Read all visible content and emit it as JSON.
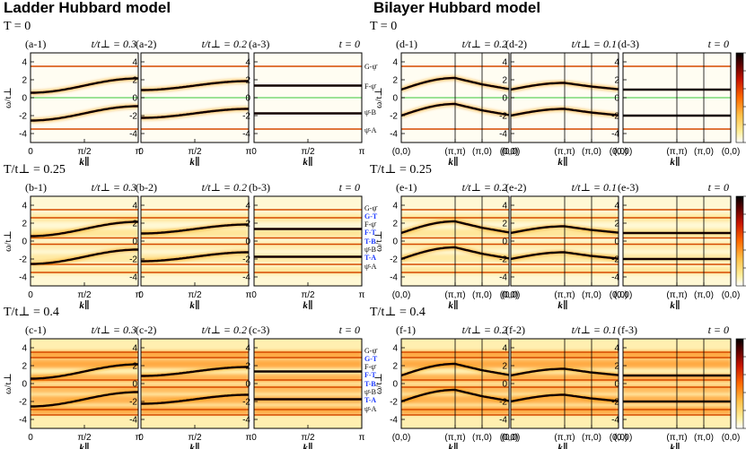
{
  "left_title": "Ladder Hubbard model",
  "right_title": "Bilayer Hubbard model",
  "ladder_row_labels": [
    "T = 0",
    "T/t⊥ = 0.25",
    "T/t⊥ = 0.4"
  ],
  "bilayer_row_labels": [
    "T = 0",
    "T/t⊥ = 0.25",
    "T/t⊥ = 0.4"
  ],
  "ladder_band_labels_row1": [
    "G-ψ̄",
    "F-ψ̄",
    "ψ̄-B",
    "ψ̄-A"
  ],
  "ladder_band_labels_hot": [
    {
      "text": "G-ψ̄",
      "blue": false
    },
    {
      "text": "G-T",
      "blue": true
    },
    {
      "text": "F-ψ̄",
      "blue": false
    },
    {
      "text": "F-T",
      "blue": true
    },
    {
      "text": "T-B",
      "blue": true
    },
    {
      "text": "ψ̄-B",
      "blue": false
    },
    {
      "text": "T-A",
      "blue": true
    },
    {
      "text": "ψ̄-A",
      "blue": false
    }
  ],
  "colorbar_ticks": [
    "1",
    "0.8",
    "0.6",
    "0.4",
    "0.2",
    "0"
  ],
  "chart_data": [
    {
      "panel": "(a-1)",
      "type": "heatmap",
      "model": "ladder",
      "param": "t/t⊥ = 0.3",
      "temperature": "T = 0",
      "x_ticks": [
        "0",
        "π/2",
        "π"
      ],
      "xlabel": "k∥",
      "ylabel": "ω/t⊥",
      "ylim": [
        -5,
        5
      ],
      "y_ticks": [
        4,
        2,
        0,
        -2,
        -4
      ]
    },
    {
      "panel": "(a-2)",
      "type": "heatmap",
      "model": "ladder",
      "param": "t/t⊥ = 0.2",
      "temperature": "T = 0",
      "x_ticks": [
        "0",
        "π/2",
        "π"
      ],
      "xlabel": "k∥",
      "ylim": [
        -5,
        5
      ],
      "y_ticks": [
        4,
        2,
        0,
        -2,
        -4
      ]
    },
    {
      "panel": "(a-3)",
      "type": "heatmap",
      "model": "ladder",
      "param": "t = 0",
      "temperature": "T = 0",
      "x_ticks": [
        "0",
        "π/2",
        "π"
      ],
      "xlabel": "k∥",
      "ylim": [
        -5,
        5
      ],
      "y_ticks": [
        4,
        2,
        0,
        -2,
        -4
      ]
    },
    {
      "panel": "(b-1)",
      "type": "heatmap",
      "model": "ladder",
      "param": "t/t⊥ = 0.3",
      "temperature": "T/t⊥ = 0.25",
      "x_ticks": [
        "0",
        "π/2",
        "π"
      ],
      "xlabel": "k∥",
      "ylabel": "ω/t⊥",
      "ylim": [
        -5,
        5
      ],
      "y_ticks": [
        4,
        2,
        0,
        -2,
        -4
      ]
    },
    {
      "panel": "(b-2)",
      "type": "heatmap",
      "model": "ladder",
      "param": "t/t⊥ = 0.2",
      "temperature": "T/t⊥ = 0.25",
      "x_ticks": [
        "0",
        "π/2",
        "π"
      ],
      "xlabel": "k∥",
      "ylim": [
        -5,
        5
      ],
      "y_ticks": [
        4,
        2,
        0,
        -2,
        -4
      ]
    },
    {
      "panel": "(b-3)",
      "type": "heatmap",
      "model": "ladder",
      "param": "t = 0",
      "temperature": "T/t⊥ = 0.25",
      "x_ticks": [
        "0",
        "π/2",
        "π"
      ],
      "xlabel": "k∥",
      "ylim": [
        -5,
        5
      ],
      "y_ticks": [
        4,
        2,
        0,
        -2,
        -4
      ]
    },
    {
      "panel": "(c-1)",
      "type": "heatmap",
      "model": "ladder",
      "param": "t/t⊥ = 0.3",
      "temperature": "T/t⊥ = 0.4",
      "x_ticks": [
        "0",
        "π/2",
        "π"
      ],
      "xlabel": "k∥",
      "ylabel": "ω/t⊥",
      "ylim": [
        -5,
        5
      ],
      "y_ticks": [
        4,
        2,
        0,
        -2,
        -4
      ]
    },
    {
      "panel": "(c-2)",
      "type": "heatmap",
      "model": "ladder",
      "param": "t/t⊥ = 0.2",
      "temperature": "T/t⊥ = 0.4",
      "x_ticks": [
        "0",
        "π/2",
        "π"
      ],
      "xlabel": "k∥",
      "ylim": [
        -5,
        5
      ],
      "y_ticks": [
        4,
        2,
        0,
        -2,
        -4
      ]
    },
    {
      "panel": "(c-3)",
      "type": "heatmap",
      "model": "ladder",
      "param": "t = 0",
      "temperature": "T/t⊥ = 0.4",
      "x_ticks": [
        "0",
        "π/2",
        "π"
      ],
      "xlabel": "k∥",
      "ylim": [
        -5,
        5
      ],
      "y_ticks": [
        4,
        2,
        0,
        -2,
        -4
      ]
    },
    {
      "panel": "(d-1)",
      "type": "heatmap",
      "model": "bilayer",
      "param": "t/t⊥ = 0.2",
      "temperature": "T = 0",
      "x_ticks": [
        "(0,0)",
        "(π,π)",
        "(π,0)",
        "(0,0)"
      ],
      "xlabel": "k∥",
      "ylabel": "ω/t⊥",
      "ylim": [
        -5,
        5
      ],
      "y_ticks": [
        4,
        2,
        0,
        -2,
        -4
      ]
    },
    {
      "panel": "(d-2)",
      "type": "heatmap",
      "model": "bilayer",
      "param": "t/t⊥ = 0.1",
      "temperature": "T = 0",
      "x_ticks": [
        "(0,0)",
        "(π,π)",
        "(π,0)",
        "(0,0)"
      ],
      "xlabel": "k∥",
      "ylim": [
        -5,
        5
      ],
      "y_ticks": [
        4,
        2,
        0,
        -2,
        -4
      ]
    },
    {
      "panel": "(d-3)",
      "type": "heatmap",
      "model": "bilayer",
      "param": "t = 0",
      "temperature": "T = 0",
      "x_ticks": [
        "(0,0)",
        "(π,π)",
        "(π,0)",
        "(0,0)"
      ],
      "xlabel": "k∥",
      "ylim": [
        -5,
        5
      ],
      "y_ticks": [
        4,
        2,
        0,
        -2,
        -4
      ],
      "colorbar": [
        0,
        1
      ]
    },
    {
      "panel": "(e-1)",
      "type": "heatmap",
      "model": "bilayer",
      "param": "t/t⊥ = 0.2",
      "temperature": "T/t⊥ = 0.25",
      "x_ticks": [
        "(0,0)",
        "(π,π)",
        "(π,0)",
        "(0,0)"
      ],
      "xlabel": "k∥",
      "ylabel": "ω/t⊥",
      "ylim": [
        -5,
        5
      ],
      "y_ticks": [
        4,
        2,
        0,
        -2,
        -4
      ]
    },
    {
      "panel": "(e-2)",
      "type": "heatmap",
      "model": "bilayer",
      "param": "t/t⊥ = 0.1",
      "temperature": "T/t⊥ = 0.25",
      "x_ticks": [
        "(0,0)",
        "(π,π)",
        "(π,0)",
        "(0,0)"
      ],
      "xlabel": "k∥",
      "ylim": [
        -5,
        5
      ],
      "y_ticks": [
        4,
        2,
        0,
        -2,
        -4
      ]
    },
    {
      "panel": "(e-3)",
      "type": "heatmap",
      "model": "bilayer",
      "param": "t = 0",
      "temperature": "T/t⊥ = 0.25",
      "x_ticks": [
        "(0,0)",
        "(π,π)",
        "(π,0)",
        "(0,0)"
      ],
      "xlabel": "k∥",
      "ylim": [
        -5,
        5
      ],
      "y_ticks": [
        4,
        2,
        0,
        -2,
        -4
      ],
      "colorbar": [
        0,
        1
      ]
    },
    {
      "panel": "(f-1)",
      "type": "heatmap",
      "model": "bilayer",
      "param": "t/t⊥ = 0.2",
      "temperature": "T/t⊥ = 0.4",
      "x_ticks": [
        "(0,0)",
        "(π,π)",
        "(π,0)",
        "(0,0)"
      ],
      "xlabel": "k∥",
      "ylabel": "ω/t⊥",
      "ylim": [
        -5,
        5
      ],
      "y_ticks": [
        4,
        2,
        0,
        -2,
        -4
      ]
    },
    {
      "panel": "(f-2)",
      "type": "heatmap",
      "model": "bilayer",
      "param": "t/t⊥ = 0.1",
      "temperature": "T/t⊥ = 0.4",
      "x_ticks": [
        "(0,0)",
        "(π,π)",
        "(π,0)",
        "(0,0)"
      ],
      "xlabel": "k∥",
      "ylim": [
        -5,
        5
      ],
      "y_ticks": [
        4,
        2,
        0,
        -2,
        -4
      ]
    },
    {
      "panel": "(f-3)",
      "type": "heatmap",
      "model": "bilayer",
      "param": "t = 0",
      "temperature": "T/t⊥ = 0.4",
      "x_ticks": [
        "(0,0)",
        "(π,π)",
        "(π,0)",
        "(0,0)"
      ],
      "xlabel": "k∥",
      "ylim": [
        -5,
        5
      ],
      "y_ticks": [
        4,
        2,
        0,
        -2,
        -4
      ],
      "colorbar": [
        0,
        1
      ]
    }
  ]
}
